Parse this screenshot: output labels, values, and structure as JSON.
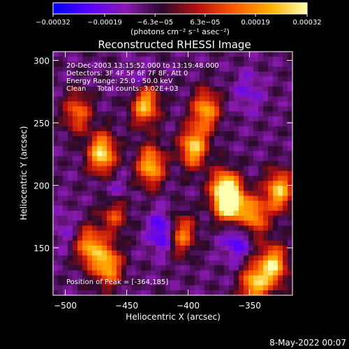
{
  "chart_data": {
    "type": "heatmap",
    "title": "Reconstructed RHESSI Image",
    "xlabel": "Heliocentric X (arcsec)",
    "ylabel": "Heliocentric Y (arcsec)",
    "xlim": [
      -510,
      -315
    ],
    "ylim": [
      112,
      307
    ],
    "xticks": [
      -500,
      -450,
      -400,
      -350
    ],
    "xtick_labels": [
      "−500",
      "−450",
      "−400",
      "−350"
    ],
    "yticks": [
      150,
      200,
      250,
      300
    ],
    "ytick_labels": [
      "150",
      "200",
      "250",
      "300"
    ],
    "grid": false,
    "colorbar": {
      "min": -0.00032,
      "max": 0.00032,
      "ticks": [
        -0.00032,
        -0.00019,
        -6.3e-05,
        6.3e-05,
        0.00019,
        0.00032
      ],
      "tick_labels": [
        "−0.00032",
        "−0.00019",
        "−6.3e−05",
        "6.3e−05",
        "0.00019",
        "0.00032"
      ],
      "unit_label": "(photons cm⁻² s⁻¹ asec⁻²)",
      "colormap": [
        "#0000ff",
        "#5a00ff",
        "#8a1ab0",
        "#2a0a2a",
        "#b81010",
        "#ff5a00",
        "#ffb000",
        "#ffffb0"
      ]
    },
    "annotations": [
      "20-Dec-2003 13:15:52.000 to 13:19:48.000",
      "Detectors: 3F 4F 5F 6F 7F 8F, Att 0",
      "Energy Range: 25.0 - 50.0 keV",
      "Clean     Total counts: 3.02E+03"
    ],
    "peak_label": "Position of Peak = [-364,185]",
    "peak": {
      "x": -364,
      "y": 185,
      "value": 0.00032
    },
    "bright_regions": [
      {
        "x": -470,
        "y": 225,
        "value": 0.0003
      },
      {
        "x": -435,
        "y": 265,
        "value": 0.00028
      },
      {
        "x": -430,
        "y": 215,
        "value": 0.00025
      },
      {
        "x": -395,
        "y": 230,
        "value": 0.00027
      },
      {
        "x": -385,
        "y": 260,
        "value": 0.00022
      },
      {
        "x": -370,
        "y": 195,
        "value": 0.00031
      },
      {
        "x": -364,
        "y": 185,
        "value": 0.00032
      },
      {
        "x": -345,
        "y": 175,
        "value": 0.0002
      },
      {
        "x": -325,
        "y": 195,
        "value": 0.00026
      },
      {
        "x": -480,
        "y": 150,
        "value": 0.00022
      },
      {
        "x": -465,
        "y": 135,
        "value": 0.00024
      },
      {
        "x": -330,
        "y": 135,
        "value": 0.00028
      },
      {
        "x": -345,
        "y": 120,
        "value": 0.00025
      },
      {
        "x": -405,
        "y": 160,
        "value": 0.00018
      },
      {
        "x": -460,
        "y": 178,
        "value": 0.00016
      },
      {
        "x": -490,
        "y": 258,
        "value": 0.00015
      }
    ],
    "dim_regions": [
      {
        "x": -460,
        "y": 190,
        "value": -0.00022
      },
      {
        "x": -420,
        "y": 162,
        "value": -0.00028
      },
      {
        "x": -360,
        "y": 155,
        "value": -0.00024
      },
      {
        "x": -440,
        "y": 280,
        "value": -0.0002
      },
      {
        "x": -350,
        "y": 275,
        "value": -0.00018
      },
      {
        "x": -500,
        "y": 165,
        "value": -0.00015
      }
    ]
  },
  "footer": {
    "date": "8-May-2022 00:07"
  }
}
